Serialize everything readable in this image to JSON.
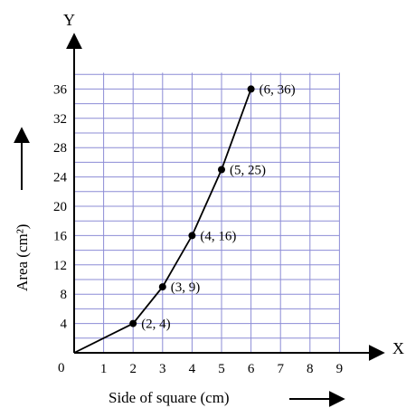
{
  "chart_data": {
    "type": "line",
    "title": "",
    "xlabel": "Side of square (cm)",
    "ylabel": "Area (cm²)",
    "x_axis_name": "X",
    "y_axis_name": "Y",
    "origin_label": "0",
    "xlim": [
      0,
      9
    ],
    "ylim": [
      0,
      36
    ],
    "x_ticks": [
      1,
      2,
      3,
      4,
      5,
      6,
      7,
      8,
      9
    ],
    "y_ticks": [
      4,
      8,
      12,
      16,
      20,
      24,
      28,
      32,
      36
    ],
    "grid": true,
    "grid_color": "#8c8cd6",
    "line_color": "#000000",
    "points": [
      {
        "x": 0,
        "y": 0,
        "label": ""
      },
      {
        "x": 2,
        "y": 4,
        "label": "(2, 4)"
      },
      {
        "x": 3,
        "y": 9,
        "label": "(3, 9)"
      },
      {
        "x": 4,
        "y": 16,
        "label": "(4, 16)"
      },
      {
        "x": 5,
        "y": 25,
        "label": "(5, 25)"
      },
      {
        "x": 6,
        "y": 36,
        "label": "(6, 36)"
      }
    ]
  }
}
